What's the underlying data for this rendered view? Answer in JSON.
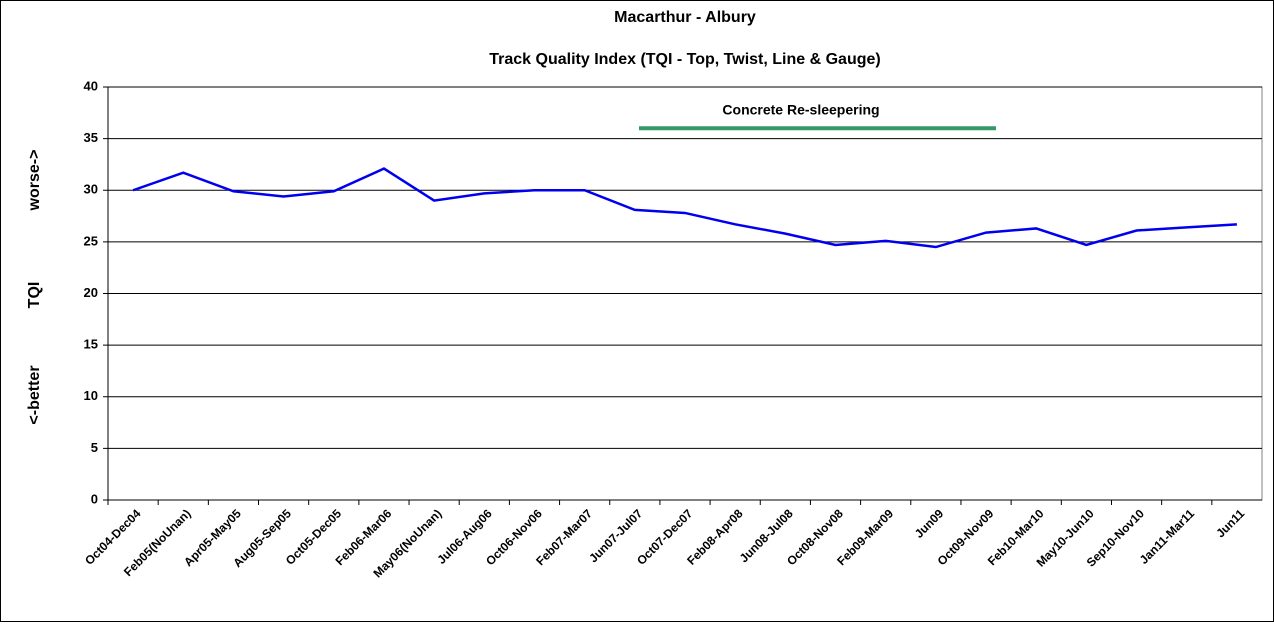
{
  "chart_data": {
    "type": "line",
    "title": "Macarthur - Albury",
    "subtitle": "Track Quality Index (TQI - Top, Twist, Line & Gauge)",
    "ylabel": [
      "<-better",
      "TQI",
      "worse->"
    ],
    "annotation": {
      "text": "Concrete Re-sleepering",
      "y": 36,
      "color": "#339966"
    },
    "categories": [
      "Oct04-Dec04",
      "Feb05(NoUnan)",
      "Apr05-May05",
      "Aug05-Sep05",
      "Oct05-Dec05",
      "Feb06-Mar06",
      "May06(NoUnan)",
      "Jul06-Aug06",
      "Oct06-Nov06",
      "Feb07-Mar07",
      "Jun07-Jul07",
      "Oct07-Dec07",
      "Feb08-Apr08",
      "Jun08-Jul08",
      "Oct08-Nov08",
      "Feb09-Mar09",
      "Jun09",
      "Oct09-Nov09",
      "Feb10-Mar10",
      "May10-Jun10",
      "Sep10-Nov10",
      "Jan11-Mar11",
      "Jun11"
    ],
    "series": [
      {
        "name": "TQI",
        "color": "#0000ee",
        "values": [
          30,
          31.7,
          29.9,
          29.4,
          29.9,
          32.1,
          29,
          29.7,
          30,
          30,
          28.1,
          27.8,
          26.7,
          25.8,
          24.7,
          25.1,
          24.5,
          25.9,
          26.3,
          24.7,
          26.1,
          26.4,
          26.7
        ]
      }
    ],
    "ylim": [
      0,
      40
    ],
    "yticks": [
      0,
      5,
      10,
      15,
      20,
      25,
      30,
      35,
      40
    ],
    "grid": true
  }
}
